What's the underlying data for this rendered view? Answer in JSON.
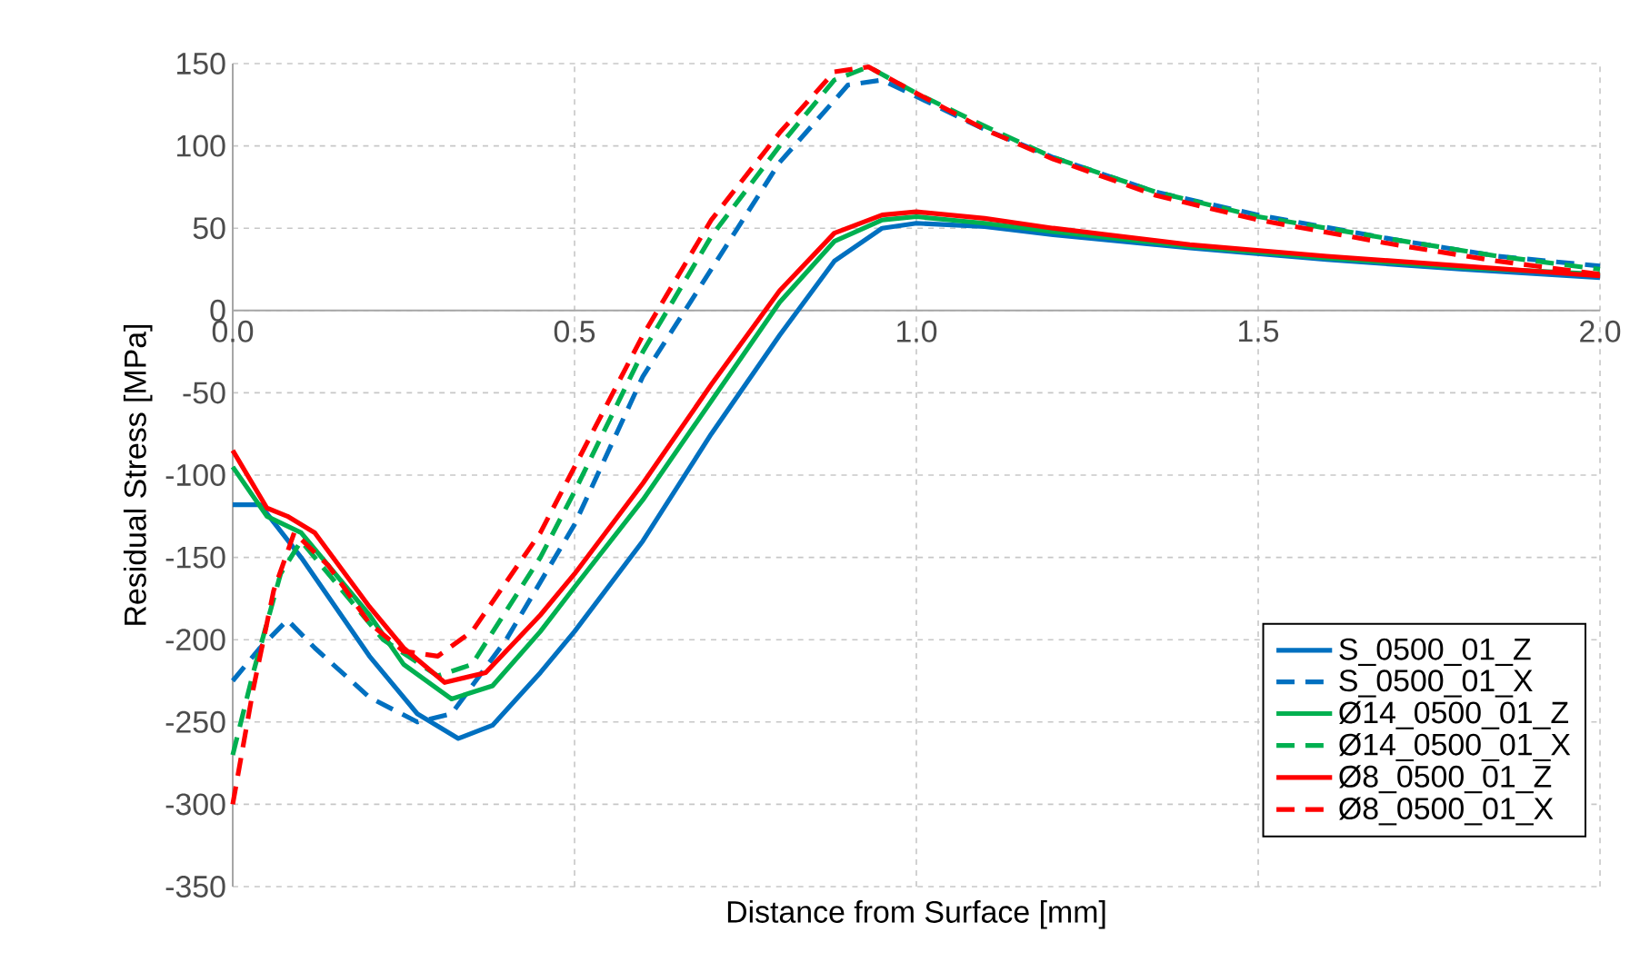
{
  "chart_data": {
    "type": "line",
    "xlabel": "Distance from Surface [mm]",
    "ylabel": "Residual Stress [MPa]",
    "xlim": [
      0,
      2
    ],
    "ylim": [
      -350,
      150
    ],
    "xticks": [
      {
        "value": 0,
        "label": "0.0"
      },
      {
        "value": 0.5,
        "label": "0.5"
      },
      {
        "value": 1,
        "label": "1.0"
      },
      {
        "value": 1.5,
        "label": "1.5"
      },
      {
        "value": 2,
        "label": "2.0"
      }
    ],
    "yticks": [
      -350,
      -300,
      -250,
      -200,
      -150,
      -100,
      -50,
      0,
      50,
      100,
      150
    ],
    "grid": true,
    "legend": "bottom right",
    "marker": "none",
    "series": [
      {
        "name": "S_0500_01_Z",
        "color": "#0070c0",
        "line_style": "solid",
        "x": [
          0,
          0.04,
          0.1,
          0.2,
          0.27,
          0.33,
          0.38,
          0.45,
          0.5,
          0.6,
          0.7,
          0.8,
          0.88,
          0.95,
          1.0,
          1.1,
          1.2,
          1.4,
          1.6,
          1.8,
          2.0
        ],
        "values": [
          -118,
          -118,
          -150,
          -210,
          -245,
          -260,
          -252,
          -220,
          -195,
          -140,
          -75,
          -15,
          30,
          50,
          53,
          51,
          46,
          38,
          31,
          25,
          20
        ]
      },
      {
        "name": "S_0500_01_X",
        "color": "#0070c0",
        "line_style": "dashed",
        "x": [
          0,
          0.04,
          0.08,
          0.12,
          0.2,
          0.27,
          0.32,
          0.4,
          0.5,
          0.6,
          0.7,
          0.8,
          0.9,
          0.95,
          1.0,
          1.1,
          1.2,
          1.35,
          1.5,
          1.7,
          1.85,
          2.0
        ],
        "values": [
          -225,
          -205,
          -188,
          -205,
          -235,
          -250,
          -245,
          -200,
          -130,
          -40,
          25,
          90,
          137,
          140,
          130,
          110,
          93,
          72,
          58,
          43,
          33,
          27
        ]
      },
      {
        "name": "Ø14_0500_01_Z",
        "color": "#00b050",
        "line_style": "solid",
        "x": [
          0,
          0.05,
          0.1,
          0.2,
          0.25,
          0.32,
          0.38,
          0.45,
          0.5,
          0.6,
          0.7,
          0.8,
          0.88,
          0.95,
          1.0,
          1.1,
          1.2,
          1.4,
          1.6,
          1.8,
          2.0
        ],
        "values": [
          -95,
          -125,
          -135,
          -185,
          -215,
          -236,
          -228,
          -195,
          -168,
          -115,
          -55,
          5,
          42,
          55,
          57,
          53,
          48,
          39,
          32,
          26,
          22
        ]
      },
      {
        "name": "Ø14_0500_01_X",
        "color": "#00b050",
        "line_style": "dashed",
        "x": [
          0,
          0.03,
          0.07,
          0.1,
          0.15,
          0.22,
          0.3,
          0.35,
          0.45,
          0.5,
          0.6,
          0.7,
          0.8,
          0.88,
          0.93,
          1.0,
          1.1,
          1.2,
          1.35,
          1.5,
          1.7,
          1.85,
          2.0
        ],
        "values": [
          -270,
          -220,
          -160,
          -140,
          -165,
          -200,
          -222,
          -215,
          -150,
          -110,
          -25,
          45,
          100,
          140,
          148,
          132,
          112,
          93,
          72,
          57,
          43,
          33,
          25
        ]
      },
      {
        "name": "Ø8_0500_01_Z",
        "color": "#ff0000",
        "line_style": "solid",
        "x": [
          0,
          0.05,
          0.08,
          0.12,
          0.2,
          0.25,
          0.31,
          0.37,
          0.45,
          0.5,
          0.6,
          0.7,
          0.8,
          0.88,
          0.95,
          1.0,
          1.1,
          1.2,
          1.4,
          1.6,
          1.8,
          2.0
        ],
        "values": [
          -85,
          -120,
          -125,
          -135,
          -180,
          -205,
          -226,
          -220,
          -185,
          -160,
          -105,
          -45,
          12,
          47,
          58,
          60,
          56,
          50,
          40,
          33,
          27,
          21
        ]
      },
      {
        "name": "Ø8_0500_01_X",
        "color": "#ff0000",
        "line_style": "dashed",
        "x": [
          0,
          0.03,
          0.06,
          0.09,
          0.14,
          0.2,
          0.25,
          0.3,
          0.35,
          0.45,
          0.5,
          0.6,
          0.7,
          0.8,
          0.88,
          0.93,
          1.0,
          1.1,
          1.2,
          1.35,
          1.5,
          1.7,
          1.85,
          2.0
        ],
        "values": [
          -300,
          -230,
          -170,
          -135,
          -155,
          -190,
          -207,
          -210,
          -195,
          -135,
          -95,
          -15,
          55,
          108,
          145,
          148,
          132,
          110,
          92,
          70,
          55,
          40,
          30,
          22
        ]
      }
    ]
  }
}
